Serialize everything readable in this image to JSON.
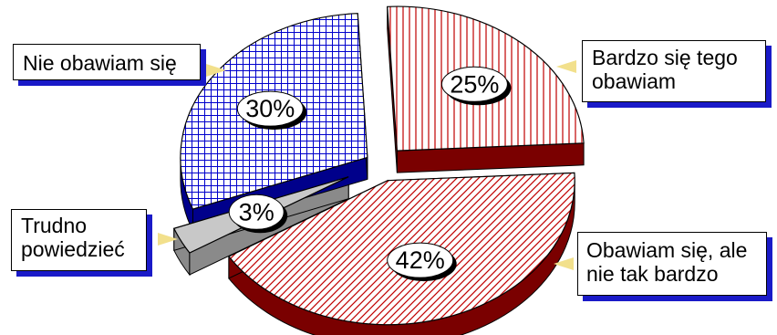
{
  "chart_data": {
    "type": "pie",
    "title": "",
    "categories": [
      "Bardzo się tego obawiam",
      "Obawiam się, ale nie tak bardzo",
      "Trudno powiedzieć",
      "Nie obawiam się"
    ],
    "values": [
      25,
      42,
      3,
      30
    ],
    "value_labels": [
      "25%",
      "42%",
      "3%",
      "30%"
    ],
    "exploded": true,
    "style": "3d",
    "legend": "callouts"
  },
  "colors": {
    "red": "#c00000",
    "dark_red": "#7a0000",
    "blue": "#0000cc",
    "dark_blue": "#00008b",
    "gray": "#c8c8c8",
    "dark_gray": "#8a8a8a",
    "callout_shadow": "#1a1ac8",
    "arrow": "#f2e08c"
  },
  "callouts": {
    "c1": "Bardzo się tego\nobawiam",
    "c2": "Obawiam się, ale\nnie tak bardzo",
    "c3": "Trudno\npowiedzieć",
    "c4": "Nie obawiam się"
  }
}
